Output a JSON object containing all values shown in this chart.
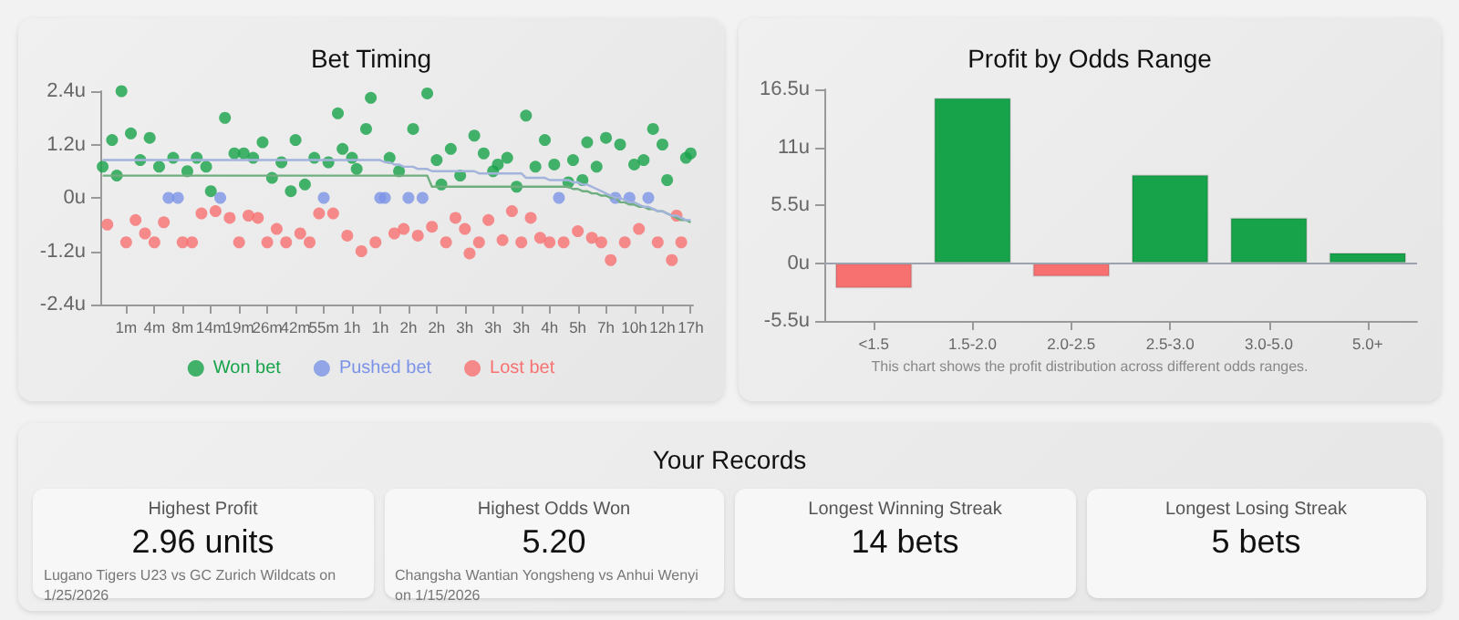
{
  "chart_data": [
    {
      "type": "scatter",
      "title": "Bet Timing",
      "categories": [
        null,
        null,
        null,
        null,
        null,
        "1m",
        null,
        null,
        null,
        null,
        null,
        "4m",
        null,
        null,
        null,
        null,
        null,
        "8m",
        null,
        null,
        null,
        null,
        null,
        "14m",
        null,
        null,
        null,
        null,
        null,
        "19m",
        null,
        null,
        null,
        null,
        null,
        "26m",
        null,
        null,
        null,
        null,
        null,
        "42m",
        null,
        null,
        null,
        null,
        null,
        "55m",
        null,
        null,
        null,
        null,
        null,
        "1h",
        null,
        null,
        null,
        null,
        null,
        "1h",
        null,
        null,
        null,
        null,
        null,
        "2h",
        null,
        null,
        null,
        null,
        null,
        "2h",
        null,
        null,
        null,
        null,
        null,
        "3h",
        null,
        null,
        null,
        null,
        null,
        "3h",
        null,
        null,
        null,
        null,
        null,
        "3h",
        null,
        null,
        null,
        null,
        null,
        "4h",
        null,
        null,
        null,
        null,
        null,
        "5h",
        null,
        null,
        null,
        null,
        null,
        "7h",
        null,
        null,
        null,
        null,
        null,
        "10h",
        null,
        null,
        null,
        null,
        null,
        "12h",
        null,
        null,
        null,
        null,
        null,
        "17h"
      ],
      "series": [
        {
          "name": "Won bet",
          "type": "scatter",
          "color": "#16a34a",
          "values": [
            0.7,
            null,
            1.3,
            0.5,
            2.4,
            null,
            1.45,
            null,
            0.85,
            null,
            1.35,
            null,
            0.7,
            null,
            null,
            0.9,
            null,
            null,
            0.6,
            null,
            0.9,
            null,
            0.7,
            0.15,
            null,
            null,
            1.8,
            null,
            1,
            null,
            1,
            null,
            0.9,
            null,
            1.25,
            null,
            0.45,
            null,
            0.8,
            null,
            0.15,
            1.3,
            null,
            0.3,
            null,
            0.9,
            null,
            null,
            0.8,
            null,
            1.9,
            1.1,
            null,
            0.9,
            0.65,
            null,
            1.55,
            2.25,
            null,
            null,
            null,
            0.9,
            null,
            0.6,
            null,
            null,
            1.55,
            null,
            null,
            2.35,
            null,
            0.85,
            0.3,
            null,
            1.1,
            null,
            0.5,
            null,
            null,
            1.4,
            null,
            1,
            null,
            0.6,
            0.75,
            null,
            0.9,
            null,
            0.25,
            null,
            1.85,
            null,
            0.7,
            null,
            1.3,
            null,
            0.75,
            null,
            null,
            0.35,
            0.85,
            null,
            0.4,
            1.25,
            null,
            0.7,
            null,
            1.35,
            null,
            null,
            1.2,
            null,
            null,
            0.75,
            null,
            0.85,
            null,
            1.55,
            null,
            1.2,
            0.4,
            null,
            null,
            null,
            0.9,
            1
          ]
        },
        {
          "name": "Pushed bet",
          "type": "scatter",
          "color": "#7b93e6",
          "values": [
            null,
            null,
            null,
            null,
            null,
            null,
            null,
            null,
            null,
            null,
            null,
            null,
            null,
            null,
            0,
            null,
            0,
            null,
            null,
            null,
            null,
            null,
            null,
            null,
            null,
            0,
            null,
            null,
            null,
            null,
            null,
            null,
            null,
            null,
            null,
            null,
            null,
            null,
            null,
            null,
            null,
            null,
            null,
            null,
            null,
            null,
            null,
            0,
            null,
            null,
            null,
            null,
            null,
            null,
            null,
            null,
            null,
            null,
            null,
            0,
            0,
            null,
            null,
            null,
            null,
            0,
            null,
            null,
            0,
            null,
            null,
            null,
            null,
            null,
            null,
            null,
            null,
            null,
            null,
            null,
            null,
            null,
            null,
            null,
            null,
            null,
            null,
            null,
            null,
            null,
            null,
            null,
            null,
            null,
            null,
            null,
            null,
            0,
            null,
            null,
            null,
            null,
            null,
            null,
            null,
            null,
            null,
            null,
            null,
            0,
            null,
            null,
            0,
            null,
            null,
            null,
            0,
            null,
            null,
            null,
            null,
            null,
            null,
            null,
            null,
            null
          ]
        },
        {
          "name": "Lost bet",
          "type": "scatter",
          "color": "#f87171",
          "values": [
            null,
            -0.6,
            null,
            null,
            null,
            -1,
            null,
            -0.5,
            null,
            -0.8,
            null,
            -1,
            null,
            -0.55,
            null,
            null,
            null,
            -1,
            null,
            -1,
            null,
            -0.35,
            null,
            null,
            -0.3,
            null,
            null,
            -0.45,
            null,
            -1,
            null,
            -0.4,
            null,
            -0.45,
            null,
            -1,
            null,
            -0.7,
            null,
            -1,
            null,
            null,
            -0.8,
            null,
            -1,
            null,
            -0.35,
            null,
            null,
            -0.35,
            null,
            null,
            -0.85,
            null,
            null,
            -1.2,
            null,
            null,
            -1,
            null,
            null,
            null,
            -0.8,
            null,
            -0.7,
            null,
            null,
            -0.85,
            null,
            null,
            -0.65,
            null,
            null,
            -1,
            null,
            -0.45,
            null,
            -0.7,
            -1.25,
            null,
            -1,
            null,
            -0.5,
            null,
            null,
            -0.95,
            null,
            -0.3,
            null,
            -1,
            null,
            -0.45,
            null,
            -0.9,
            null,
            -1,
            null,
            null,
            -1,
            null,
            null,
            -0.75,
            null,
            null,
            -0.9,
            null,
            -1,
            null,
            -1.4,
            null,
            null,
            -1,
            null,
            null,
            -0.7,
            null,
            null,
            null,
            -1,
            null,
            null,
            -1.4,
            -0.4,
            -1,
            null,
            null
          ]
        },
        {
          "type": "line",
          "marker": "none",
          "color": "#6fae7f",
          "values": [
            0.5,
            0.5,
            0.5,
            0.5,
            0.5,
            0.5,
            0.5,
            0.5,
            0.5,
            0.5,
            0.5,
            0.5,
            0.5,
            0.5,
            0.5,
            0.5,
            0.5,
            0.5,
            0.5,
            0.5,
            0.5,
            0.5,
            0.5,
            0.5,
            0.5,
            0.5,
            0.5,
            0.5,
            0.5,
            0.5,
            0.5,
            0.5,
            0.5,
            0.5,
            0.5,
            0.5,
            0.5,
            0.5,
            0.5,
            0.5,
            0.5,
            0.5,
            0.5,
            0.5,
            0.5,
            0.5,
            0.5,
            0.5,
            0.5,
            0.5,
            0.5,
            0.5,
            0.5,
            0.5,
            0.5,
            0.5,
            0.5,
            0.5,
            0.5,
            0.5,
            0.5,
            0.5,
            0.5,
            0.5,
            0.5,
            0.5,
            0.5,
            0.5,
            0.5,
            0.5,
            0.25,
            0.25,
            0.25,
            0.25,
            0.25,
            0.25,
            0.25,
            0.25,
            0.25,
            0.25,
            0.25,
            0.25,
            0.25,
            0.25,
            0.25,
            0.25,
            0.25,
            0.25,
            0.25,
            0.25,
            0.25,
            0.25,
            0.25,
            0.25,
            0.25,
            0.25,
            0.25,
            0.25,
            0.25,
            0.25,
            0.2,
            0.2,
            0.15,
            0.15,
            0.1,
            0.1,
            0.05,
            0.05,
            0,
            0,
            -0.1,
            -0.1,
            -0.15,
            -0.15,
            -0.2,
            -0.2,
            -0.25,
            -0.25,
            -0.3,
            -0.3,
            -0.35,
            -0.4,
            -0.45,
            -0.5,
            -0.5,
            -0.55
          ]
        },
        {
          "type": "line",
          "marker": "none",
          "color": "#a3b3dc",
          "values": [
            0.85,
            0.85,
            0.85,
            0.85,
            0.85,
            0.85,
            0.85,
            0.85,
            0.85,
            0.85,
            0.85,
            0.85,
            0.85,
            0.85,
            0.85,
            0.85,
            0.85,
            0.85,
            0.85,
            0.85,
            0.85,
            0.85,
            0.85,
            0.85,
            0.85,
            0.85,
            0.85,
            0.85,
            0.85,
            0.85,
            0.85,
            0.85,
            0.85,
            0.85,
            0.85,
            0.85,
            0.85,
            0.85,
            0.85,
            0.85,
            0.85,
            0.85,
            0.85,
            0.85,
            0.85,
            0.85,
            0.85,
            0.85,
            0.85,
            0.85,
            0.85,
            0.85,
            0.85,
            0.85,
            0.85,
            0.85,
            0.85,
            0.85,
            0.85,
            0.85,
            0.8,
            0.8,
            0.75,
            0.75,
            0.7,
            0.7,
            0.7,
            0.65,
            0.65,
            0.65,
            0.6,
            0.6,
            0.6,
            0.6,
            0.6,
            0.6,
            0.6,
            0.6,
            0.6,
            0.6,
            0.55,
            0.55,
            0.55,
            0.55,
            0.55,
            0.55,
            0.55,
            0.55,
            0.55,
            0.55,
            0.45,
            0.45,
            0.45,
            0.45,
            0.45,
            0.4,
            0.4,
            0.4,
            0.4,
            0.4,
            0.35,
            0.35,
            0.3,
            0.3,
            0.25,
            0.2,
            0.15,
            0.1,
            0.05,
            0,
            0,
            -0.05,
            -0.1,
            -0.1,
            -0.15,
            -0.2,
            -0.2,
            -0.25,
            -0.3,
            -0.3,
            -0.35,
            -0.4,
            -0.4,
            -0.45,
            -0.5,
            -0.5
          ]
        }
      ],
      "ylim": [
        -2.4,
        2.4
      ],
      "yticks": [
        {
          "value": -2.4,
          "label": "-2.4u"
        },
        {
          "value": -1.2,
          "label": "-1.2u"
        },
        {
          "value": 0,
          "label": "0u"
        },
        {
          "value": 1.2,
          "label": "1.2u"
        },
        {
          "value": 2.4,
          "label": "2.4u"
        }
      ],
      "marker": "circle",
      "grid": false,
      "legend": "bottom"
    },
    {
      "type": "bar",
      "title": "Profit by Odds Range",
      "categories": [
        "<1.5",
        "1.5-2.0",
        "2.0-2.5",
        "2.5-3.0",
        "3.0-5.0",
        "5.0+"
      ],
      "values": [
        -2.4,
        15.7,
        -1.3,
        8.4,
        4.3,
        1
      ],
      "colors": [
        "#f87171",
        "#16a34a",
        "#f87171",
        "#16a34a",
        "#16a34a",
        "#16a34a"
      ],
      "ylim": [
        -5.5,
        16.5
      ],
      "yticks": [
        {
          "value": -5.5,
          "label": "-5.5u"
        },
        {
          "value": 0,
          "label": "0u"
        },
        {
          "value": 5.5,
          "label": "5.5u"
        },
        {
          "value": 11,
          "label": "11u"
        },
        {
          "value": 16.5,
          "label": "16.5u"
        }
      ],
      "ref_lines": [
        {
          "axis": "y",
          "value": 0,
          "color": "#9ca3af"
        }
      ],
      "annotations": [
        "This chart shows the profit distribution across different odds ranges."
      ],
      "grid": false
    },
    {
      "type": "other",
      "title": "Your Records",
      "categories": [
        "Highest Profit",
        "Highest Odds Won",
        "Longest Winning Streak",
        "Longest Losing Streak"
      ],
      "value_labels": [
        "2.96 units",
        "5.20",
        "14 bets",
        "5 bets"
      ],
      "annotations": [
        "Lugano Tigers U23 vs GC Zurich Wildcats on 1/25/2026",
        "Changsha Wantian Yongsheng vs Anhui Wenyi on 1/15/2026"
      ]
    }
  ]
}
